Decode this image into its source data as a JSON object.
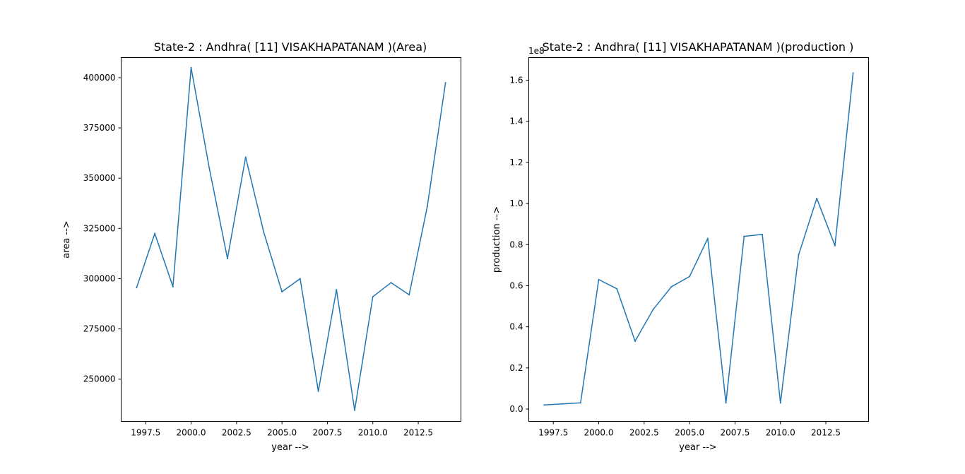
{
  "chart_data": [
    {
      "type": "line",
      "title": "State-2 : Andhra( [11] VISAKHAPATANAM )(Area)",
      "xlabel": "year -->",
      "ylabel": "area -->",
      "xlim": [
        1996.15,
        2014.85
      ],
      "ylim": [
        229000,
        410000
      ],
      "xticks": [
        1997.5,
        2000.0,
        2002.5,
        2005.0,
        2007.5,
        2010.0,
        2012.5
      ],
      "xtick_labels": [
        "1997.5",
        "2000.0",
        "2002.5",
        "2005.0",
        "2007.5",
        "2010.0",
        "2012.5"
      ],
      "yticks": [
        250000,
        275000,
        300000,
        325000,
        350000,
        375000,
        400000
      ],
      "ytick_labels": [
        "250000",
        "275000",
        "300000",
        "325000",
        "350000",
        "375000",
        "400000"
      ],
      "offset_text": "",
      "grid": false,
      "color": "#1f77b4",
      "x": [
        1997,
        1998,
        1999,
        2000,
        2001,
        2002,
        2003,
        2004,
        2005,
        2006,
        2007,
        2008,
        2009,
        2010,
        2011,
        2012,
        2013,
        2014
      ],
      "y": [
        295500,
        322500,
        296000,
        405000,
        355000,
        310000,
        360500,
        323000,
        293500,
        300000,
        244000,
        294500,
        234500,
        291000,
        298000,
        292000,
        336000,
        397500
      ]
    },
    {
      "type": "line",
      "title": "State-2 : Andhra( [11] VISAKHAPATANAM )(production )",
      "xlabel": "year -->",
      "ylabel": "production -->",
      "xlim": [
        1996.15,
        2014.85
      ],
      "ylim": [
        -0.06,
        1.71
      ],
      "xticks": [
        1997.5,
        2000.0,
        2002.5,
        2005.0,
        2007.5,
        2010.0,
        2012.5
      ],
      "xtick_labels": [
        "1997.5",
        "2000.0",
        "2002.5",
        "2005.0",
        "2007.5",
        "2010.0",
        "2012.5"
      ],
      "yticks": [
        0.0,
        0.2,
        0.4,
        0.6,
        0.8,
        1.0,
        1.2,
        1.4,
        1.6
      ],
      "ytick_labels": [
        "0.0",
        "0.2",
        "0.4",
        "0.6",
        "0.8",
        "1.0",
        "1.2",
        "1.4",
        "1.6"
      ],
      "offset_text": "1e8",
      "grid": false,
      "color": "#1f77b4",
      "x": [
        1997,
        1998,
        1999,
        2000,
        2001,
        2002,
        2003,
        2004,
        2005,
        2006,
        2007,
        2008,
        2009,
        2010,
        2011,
        2012,
        2013,
        2014
      ],
      "y": [
        0.02,
        0.025,
        0.03,
        0.63,
        0.585,
        0.33,
        0.485,
        0.595,
        0.645,
        0.83,
        0.03,
        0.84,
        0.85,
        0.03,
        0.75,
        1.025,
        0.795,
        1.635
      ]
    }
  ]
}
